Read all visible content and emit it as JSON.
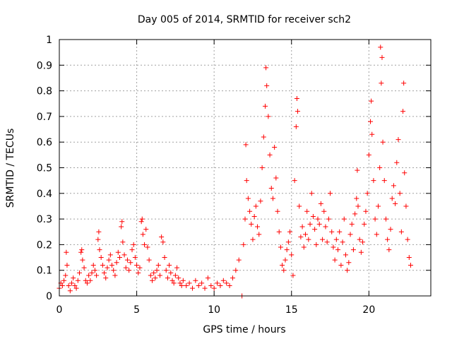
{
  "chart_data": {
    "type": "scatter",
    "title": "Day 005 of 2014, SRMTID for receiver sch2",
    "xlabel": "GPS time / hours",
    "ylabel": "SRMTID / TECUs",
    "xlim": [
      0,
      24
    ],
    "ylim": [
      0,
      1
    ],
    "xticks": [
      0,
      5,
      10,
      15,
      20
    ],
    "xtick_labels": [
      "0",
      "5",
      "10",
      "15",
      "20"
    ],
    "yticks": [
      0,
      0.1,
      0.2,
      0.3,
      0.4,
      0.5,
      0.6,
      0.7,
      0.8,
      0.9,
      1
    ],
    "ytick_labels": [
      "0",
      "0.1",
      "0.2",
      "0.3",
      "0.4",
      "0.5",
      "0.6",
      "0.7",
      "0.8",
      "0.9",
      "1"
    ],
    "grid": true,
    "marker": "+",
    "color": "#ff0000",
    "series": [
      {
        "name": "sch2",
        "points": [
          [
            0.0,
            0.03
          ],
          [
            0.1,
            0.05
          ],
          [
            0.2,
            0.04
          ],
          [
            0.3,
            0.06
          ],
          [
            0.4,
            0.08
          ],
          [
            0.45,
            0.17
          ],
          [
            0.5,
            0.12
          ],
          [
            0.6,
            0.04
          ],
          [
            0.7,
            0.02
          ],
          [
            0.8,
            0.05
          ],
          [
            0.9,
            0.07
          ],
          [
            1.0,
            0.04
          ],
          [
            1.1,
            0.03
          ],
          [
            1.2,
            0.06
          ],
          [
            1.3,
            0.09
          ],
          [
            1.4,
            0.17
          ],
          [
            1.45,
            0.18
          ],
          [
            1.5,
            0.14
          ],
          [
            1.6,
            0.11
          ],
          [
            1.7,
            0.06
          ],
          [
            1.8,
            0.05
          ],
          [
            1.9,
            0.08
          ],
          [
            2.0,
            0.06
          ],
          [
            2.1,
            0.09
          ],
          [
            2.2,
            0.12
          ],
          [
            2.3,
            0.1
          ],
          [
            2.4,
            0.08
          ],
          [
            2.5,
            0.22
          ],
          [
            2.55,
            0.25
          ],
          [
            2.6,
            0.18
          ],
          [
            2.7,
            0.15
          ],
          [
            2.8,
            0.12
          ],
          [
            2.9,
            0.09
          ],
          [
            3.0,
            0.07
          ],
          [
            3.1,
            0.11
          ],
          [
            3.2,
            0.14
          ],
          [
            3.3,
            0.16
          ],
          [
            3.4,
            0.12
          ],
          [
            3.5,
            0.1
          ],
          [
            3.6,
            0.08
          ],
          [
            3.7,
            0.13
          ],
          [
            3.8,
            0.17
          ],
          [
            3.9,
            0.15
          ],
          [
            4.0,
            0.27
          ],
          [
            4.05,
            0.29
          ],
          [
            4.1,
            0.21
          ],
          [
            4.2,
            0.16
          ],
          [
            4.3,
            0.11
          ],
          [
            4.4,
            0.14
          ],
          [
            4.5,
            0.1
          ],
          [
            4.6,
            0.13
          ],
          [
            4.7,
            0.18
          ],
          [
            4.8,
            0.2
          ],
          [
            4.9,
            0.15
          ],
          [
            5.0,
            0.12
          ],
          [
            5.1,
            0.09
          ],
          [
            5.2,
            0.11
          ],
          [
            5.3,
            0.29
          ],
          [
            5.35,
            0.3
          ],
          [
            5.4,
            0.24
          ],
          [
            5.5,
            0.2
          ],
          [
            5.6,
            0.26
          ],
          [
            5.7,
            0.19
          ],
          [
            5.8,
            0.14
          ],
          [
            5.9,
            0.08
          ],
          [
            6.0,
            0.06
          ],
          [
            6.1,
            0.09
          ],
          [
            6.2,
            0.07
          ],
          [
            6.3,
            0.1
          ],
          [
            6.4,
            0.12
          ],
          [
            6.5,
            0.08
          ],
          [
            6.6,
            0.23
          ],
          [
            6.7,
            0.21
          ],
          [
            6.8,
            0.15
          ],
          [
            6.9,
            0.1
          ],
          [
            7.0,
            0.07
          ],
          [
            7.1,
            0.12
          ],
          [
            7.2,
            0.09
          ],
          [
            7.3,
            0.06
          ],
          [
            7.4,
            0.05
          ],
          [
            7.5,
            0.08
          ],
          [
            7.6,
            0.11
          ],
          [
            7.7,
            0.07
          ],
          [
            7.8,
            0.05
          ],
          [
            7.9,
            0.04
          ],
          [
            8.0,
            0.06
          ],
          [
            8.2,
            0.04
          ],
          [
            8.4,
            0.05
          ],
          [
            8.6,
            0.03
          ],
          [
            8.8,
            0.06
          ],
          [
            9.0,
            0.04
          ],
          [
            9.2,
            0.05
          ],
          [
            9.4,
            0.03
          ],
          [
            9.6,
            0.07
          ],
          [
            9.8,
            0.04
          ],
          [
            10.0,
            0.03
          ],
          [
            10.2,
            0.05
          ],
          [
            10.4,
            0.04
          ],
          [
            10.6,
            0.06
          ],
          [
            10.8,
            0.05
          ],
          [
            11.0,
            0.04
          ],
          [
            11.2,
            0.07
          ],
          [
            11.4,
            0.1
          ],
          [
            11.6,
            0.14
          ],
          [
            11.8,
            0.0
          ],
          [
            11.9,
            0.2
          ],
          [
            12.0,
            0.3
          ],
          [
            12.05,
            0.59
          ],
          [
            12.1,
            0.45
          ],
          [
            12.2,
            0.38
          ],
          [
            12.3,
            0.33
          ],
          [
            12.4,
            0.28
          ],
          [
            12.5,
            0.22
          ],
          [
            12.6,
            0.31
          ],
          [
            12.7,
            0.35
          ],
          [
            12.8,
            0.27
          ],
          [
            12.9,
            0.24
          ],
          [
            13.0,
            0.37
          ],
          [
            13.1,
            0.5
          ],
          [
            13.2,
            0.62
          ],
          [
            13.3,
            0.74
          ],
          [
            13.35,
            0.89
          ],
          [
            13.4,
            0.82
          ],
          [
            13.5,
            0.7
          ],
          [
            13.6,
            0.55
          ],
          [
            13.7,
            0.42
          ],
          [
            13.8,
            0.38
          ],
          [
            13.9,
            0.58
          ],
          [
            14.0,
            0.46
          ],
          [
            14.1,
            0.33
          ],
          [
            14.2,
            0.25
          ],
          [
            14.3,
            0.19
          ],
          [
            14.4,
            0.12
          ],
          [
            14.5,
            0.1
          ],
          [
            14.6,
            0.14
          ],
          [
            14.7,
            0.18
          ],
          [
            14.8,
            0.21
          ],
          [
            14.9,
            0.25
          ],
          [
            15.0,
            0.16
          ],
          [
            15.1,
            0.08
          ],
          [
            15.2,
            0.45
          ],
          [
            15.3,
            0.66
          ],
          [
            15.35,
            0.77
          ],
          [
            15.4,
            0.72
          ],
          [
            15.5,
            0.35
          ],
          [
            15.6,
            0.23
          ],
          [
            15.7,
            0.27
          ],
          [
            15.8,
            0.19
          ],
          [
            15.9,
            0.24
          ],
          [
            16.0,
            0.33
          ],
          [
            16.1,
            0.22
          ],
          [
            16.2,
            0.28
          ],
          [
            16.3,
            0.4
          ],
          [
            16.4,
            0.31
          ],
          [
            16.5,
            0.26
          ],
          [
            16.6,
            0.2
          ],
          [
            16.7,
            0.3
          ],
          [
            16.8,
            0.28
          ],
          [
            16.9,
            0.36
          ],
          [
            17.0,
            0.22
          ],
          [
            17.1,
            0.33
          ],
          [
            17.2,
            0.27
          ],
          [
            17.3,
            0.21
          ],
          [
            17.4,
            0.3
          ],
          [
            17.5,
            0.4
          ],
          [
            17.6,
            0.25
          ],
          [
            17.7,
            0.19
          ],
          [
            17.8,
            0.14
          ],
          [
            17.9,
            0.22
          ],
          [
            18.0,
            0.18
          ],
          [
            18.1,
            0.25
          ],
          [
            18.2,
            0.12
          ],
          [
            18.3,
            0.21
          ],
          [
            18.4,
            0.3
          ],
          [
            18.5,
            0.16
          ],
          [
            18.6,
            0.1
          ],
          [
            18.7,
            0.13
          ],
          [
            18.8,
            0.24
          ],
          [
            18.9,
            0.28
          ],
          [
            19.0,
            0.18
          ],
          [
            19.1,
            0.32
          ],
          [
            19.2,
            0.38
          ],
          [
            19.25,
            0.49
          ],
          [
            19.3,
            0.35
          ],
          [
            19.4,
            0.22
          ],
          [
            19.5,
            0.17
          ],
          [
            19.6,
            0.21
          ],
          [
            19.7,
            0.28
          ],
          [
            19.8,
            0.33
          ],
          [
            19.9,
            0.4
          ],
          [
            20.0,
            0.55
          ],
          [
            20.1,
            0.68
          ],
          [
            20.15,
            0.76
          ],
          [
            20.2,
            0.63
          ],
          [
            20.3,
            0.45
          ],
          [
            20.4,
            0.3
          ],
          [
            20.5,
            0.24
          ],
          [
            20.6,
            0.35
          ],
          [
            20.7,
            0.5
          ],
          [
            20.75,
            0.97
          ],
          [
            20.8,
            0.83
          ],
          [
            20.85,
            0.93
          ],
          [
            20.9,
            0.6
          ],
          [
            21.0,
            0.45
          ],
          [
            21.1,
            0.3
          ],
          [
            21.2,
            0.22
          ],
          [
            21.3,
            0.18
          ],
          [
            21.4,
            0.26
          ],
          [
            21.5,
            0.38
          ],
          [
            21.6,
            0.43
          ],
          [
            21.7,
            0.36
          ],
          [
            21.8,
            0.52
          ],
          [
            21.9,
            0.61
          ],
          [
            22.0,
            0.4
          ],
          [
            22.1,
            0.25
          ],
          [
            22.2,
            0.72
          ],
          [
            22.25,
            0.83
          ],
          [
            22.3,
            0.48
          ],
          [
            22.4,
            0.35
          ],
          [
            22.5,
            0.22
          ],
          [
            22.6,
            0.15
          ],
          [
            22.7,
            0.12
          ]
        ]
      }
    ]
  }
}
